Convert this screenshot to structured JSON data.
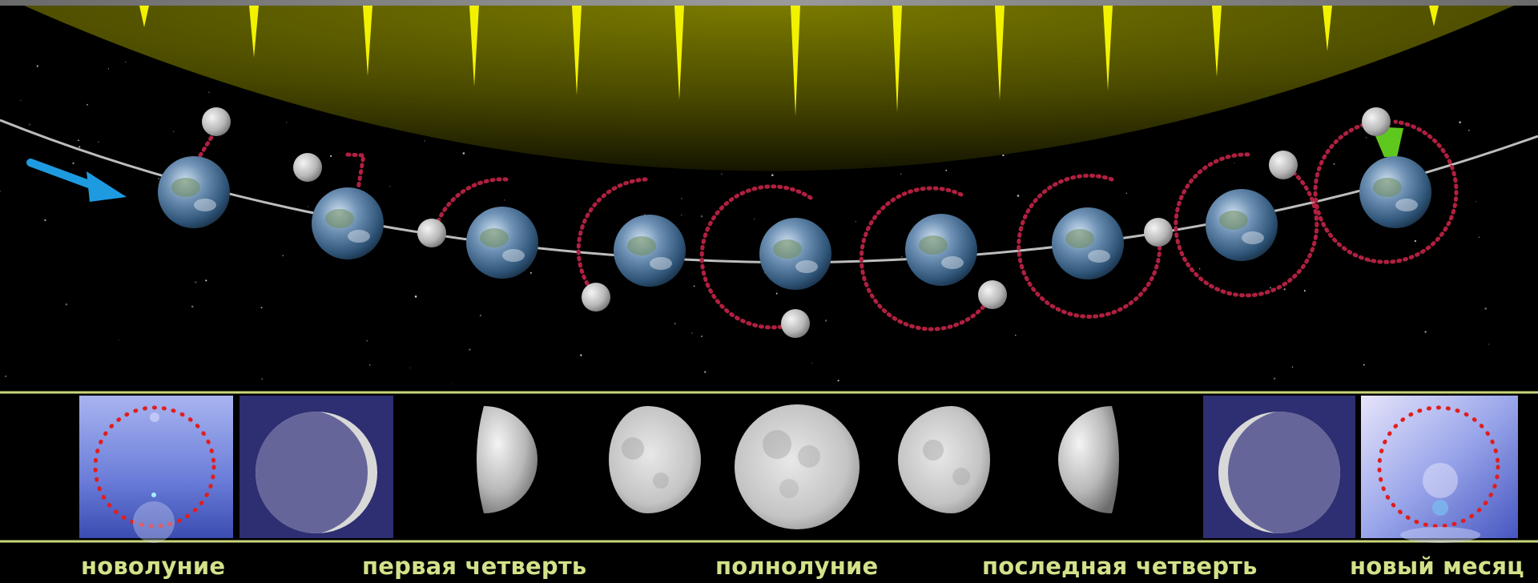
{
  "colors": {
    "background": "#000000",
    "sun_glow": "#6e6e00",
    "sun_ray": "#f2f200",
    "orbit_path": "#bdbdbd",
    "moon_orbit": "#b02040",
    "direction_arrow": "#1e9be0",
    "highlight_wedge": "#5fc81e",
    "divider": "#c8d67a",
    "label": "#d2e28a"
  },
  "icons": {
    "direction": "blue-arrow-icon",
    "earth": "earth-globe-icon",
    "moon": "moon-sphere-icon"
  },
  "labels": [
    {
      "key": "new_moon",
      "text": "новолуние"
    },
    {
      "key": "first_quarter",
      "text": "первая четверть"
    },
    {
      "key": "full_moon",
      "text": "полнолуние"
    },
    {
      "key": "last_quarter",
      "text": "последная четверть"
    },
    {
      "key": "new_month",
      "text": "новый месяц"
    }
  ]
}
